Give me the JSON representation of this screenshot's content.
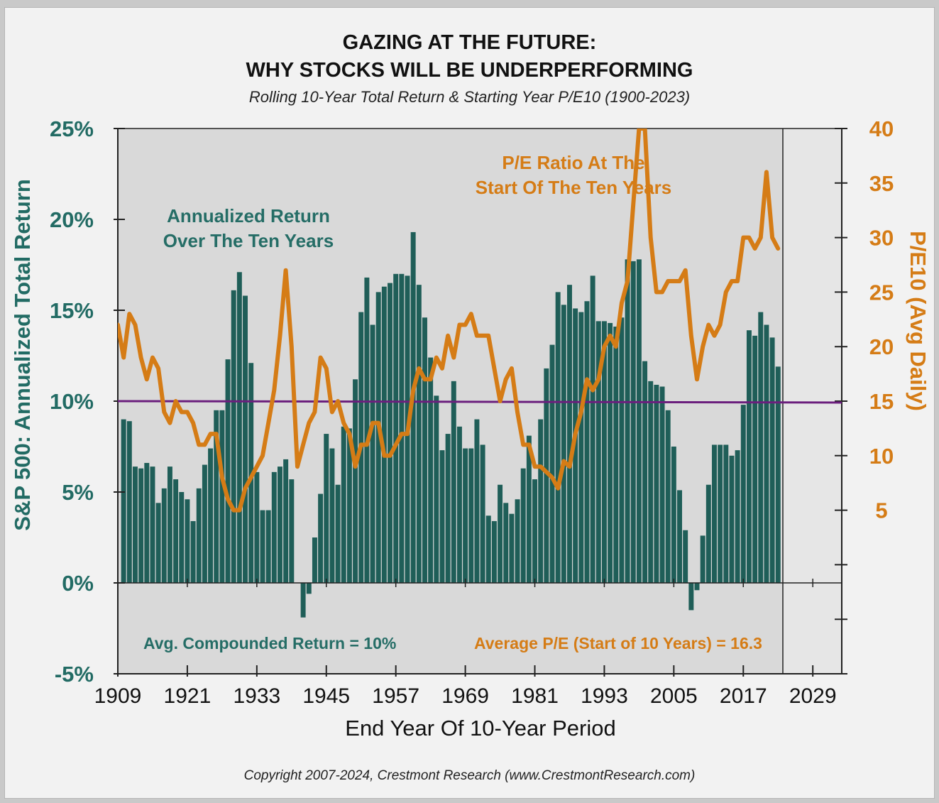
{
  "title_line1": "GAZING AT THE FUTURE:",
  "title_line2": "WHY STOCKS WILL BE UNDERPERFORMING",
  "subtitle": "Rolling 10-Year Total Return & Starting Year P/E10 (1900-2023)",
  "copyright": "Copyright 2007-2024, Crestmont Research (www.CrestmontResearch.com)",
  "colors": {
    "bar": "#1f5e58",
    "pe_line": "#d57c16",
    "avg_line": "#6b1f7d",
    "plot_bg": "#d9d9d9",
    "teal_text": "#256d66",
    "orange_text": "#d57c16"
  },
  "chart_data": {
    "type": "bar",
    "title": "GAZING AT THE FUTURE: WHY STOCKS WILL BE UNDERPERFORMING",
    "subtitle": "Rolling 10-Year Total Return & Starting Year P/E10 (1900-2023)",
    "xlabel": "End Year Of 10-Year Period",
    "ylabel_left": "S&P 500: Annualized Total Return",
    "ylabel_right": "P/E10 (Avg Daily)",
    "xlim": [
      1909,
      2034
    ],
    "ylim_left": [
      -5,
      25
    ],
    "ylim_right": [
      -10,
      40
    ],
    "x_ticks": [
      1909,
      1921,
      1933,
      1945,
      1957,
      1969,
      1981,
      1993,
      2005,
      2017,
      2029
    ],
    "y_ticks_left": [
      "25%",
      "20%",
      "15%",
      "10%",
      "5%",
      "0%",
      "-5%"
    ],
    "y_ticks_right": [
      "40",
      "35",
      "30",
      "25",
      "20",
      "15",
      "10",
      "5"
    ],
    "y_tick_values_left": [
      25,
      20,
      15,
      10,
      5,
      0,
      -5
    ],
    "y_tick_values_right": [
      40,
      35,
      30,
      25,
      20,
      15,
      10,
      5
    ],
    "projection_start_year": 2024,
    "average_return": 10,
    "average_pe": 16.3,
    "annotations": {
      "return_label": [
        "Annualized Return",
        "Over The Ten Years"
      ],
      "pe_label": [
        "P/E Ratio At The",
        "Start Of The Ten Years"
      ],
      "avg_return_text": "Avg. Compounded Return = 10%",
      "avg_pe_text": "Average P/E (Start of 10 Years) = 16.3"
    },
    "series": [
      {
        "name": "Annualized Return Over The Ten Years",
        "kind": "bar",
        "x_start": 1910,
        "values": [
          9.0,
          8.9,
          6.4,
          6.3,
          6.6,
          6.4,
          4.4,
          5.2,
          6.4,
          5.7,
          5.0,
          4.6,
          3.4,
          5.2,
          6.5,
          7.4,
          9.5,
          9.5,
          12.3,
          16.1,
          17.1,
          15.8,
          12.1,
          6.1,
          4.0,
          4.0,
          6.1,
          6.4,
          6.8,
          5.7,
          0.0,
          -1.9,
          -0.6,
          2.5,
          4.9,
          8.2,
          7.4,
          5.4,
          8.6,
          8.5,
          11.2,
          14.9,
          16.8,
          14.2,
          16.0,
          16.3,
          16.5,
          17.0,
          17.0,
          16.9,
          19.3,
          16.4,
          14.6,
          12.4,
          10.3,
          7.3,
          8.2,
          11.1,
          8.6,
          7.4,
          7.4,
          9.0,
          7.6,
          3.7,
          3.4,
          5.4,
          4.4,
          3.8,
          4.6,
          6.3,
          8.1,
          5.7,
          9.0,
          11.8,
          13.1,
          16.0,
          15.3,
          16.4,
          15.1,
          14.9,
          15.5,
          16.9,
          14.4,
          14.4,
          14.3,
          14.1,
          14.6,
          17.8,
          17.7,
          17.8,
          12.2,
          11.1,
          10.9,
          10.8,
          9.5,
          7.5,
          5.1,
          2.9,
          -1.5,
          -0.4,
          2.6,
          5.4,
          7.6,
          7.6,
          7.6,
          7.0,
          7.3,
          9.8,
          13.9,
          13.6,
          14.9,
          14.2,
          13.5,
          11.9
        ]
      },
      {
        "name": "P/E Ratio At The Start Of The Ten Years",
        "kind": "line",
        "x_start": 1909,
        "values": [
          22,
          19,
          23,
          22,
          19,
          17,
          19,
          18,
          14,
          13,
          15,
          14,
          14,
          13,
          11,
          11,
          12,
          12,
          8,
          6,
          5,
          5,
          7,
          8,
          9,
          10,
          13,
          16,
          21,
          27,
          20,
          9,
          11,
          13,
          14,
          19,
          18,
          14,
          15,
          13,
          12,
          9,
          11,
          11,
          13,
          13,
          10,
          10,
          11,
          12,
          12,
          16,
          18,
          17,
          17,
          19,
          18,
          21,
          19,
          22,
          22,
          23,
          21,
          21,
          21,
          18,
          15,
          17,
          18,
          14,
          11,
          11,
          9,
          9,
          8.5,
          8,
          7,
          9.5,
          9,
          12,
          14,
          17,
          16,
          17,
          20,
          21,
          20,
          24,
          26,
          33,
          40,
          40,
          30,
          25,
          25,
          26,
          26,
          26,
          27,
          21,
          17,
          20,
          22,
          21,
          22,
          25,
          26,
          26,
          30,
          30,
          29,
          30,
          36,
          30,
          29
        ]
      }
    ]
  }
}
